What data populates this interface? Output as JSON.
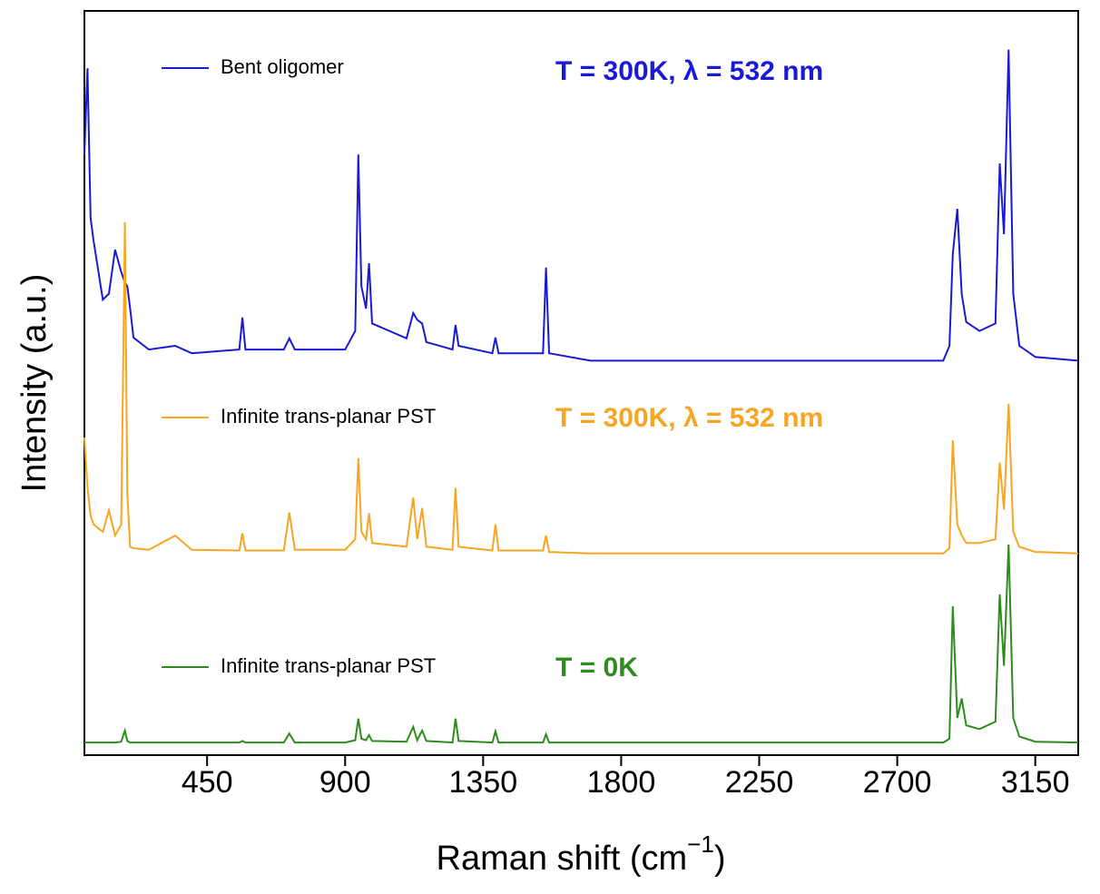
{
  "chart_data": {
    "type": "line",
    "y_label": "Intensity (a.u.)",
    "x_label": {
      "text": "Raman shift (cm",
      "superscript": "−1",
      "suffix": ")"
    },
    "xlim": [
      50,
      3290
    ],
    "ylim": [
      0,
      100
    ],
    "xticks": [
      450,
      900,
      1350,
      1800,
      2250,
      2700,
      3150
    ],
    "x": [
      50,
      60,
      70,
      80,
      110,
      130,
      150,
      170,
      182,
      190,
      199,
      210,
      260,
      346,
      400,
      555,
      565,
      575,
      700,
      718,
      736,
      900,
      933,
      943,
      953,
      968,
      978,
      988,
      1100,
      1122,
      1135,
      1151,
      1165,
      1250,
      1260,
      1270,
      1380,
      1390,
      1400,
      1545,
      1555,
      1565,
      1700,
      2850,
      2870,
      2881,
      2896,
      2910,
      2925,
      2968,
      3020,
      3034,
      3048,
      3063,
      3078,
      3098,
      3150,
      3290
    ],
    "series": [
      {
        "name": "Bent oligomer",
        "color": "#1a1ad6",
        "annotation": "T = 300K, λ = 532 nm",
        "values": [
          80.7,
          92.3,
          72.2,
          69.1,
          61.2,
          62,
          67.9,
          64.9,
          63.5,
          63,
          60,
          56.1,
          54.5,
          55,
          54,
          54.5,
          58.8,
          54.5,
          54.5,
          56,
          54.5,
          54.5,
          57,
          80.7,
          63,
          60,
          66.1,
          58,
          56,
          59.4,
          58.5,
          58,
          55.5,
          54.5,
          57.8,
          55,
          54,
          56.1,
          54,
          54,
          65.5,
          54,
          53,
          53,
          55,
          67.3,
          73.4,
          62,
          58.2,
          57,
          58,
          79.5,
          70,
          94.8,
          62,
          55,
          53.5,
          53
        ]
      },
      {
        "name": "Infinite trans-planar PST",
        "color": "#f5a623",
        "annotation": "T = 300K, λ = 532 nm",
        "values": [
          42.7,
          36,
          32.2,
          31,
          30,
          32.9,
          29.5,
          31,
          71.6,
          35,
          28,
          27.8,
          27.6,
          29.5,
          27.6,
          27.5,
          29.8,
          27.5,
          27.5,
          32.6,
          27.6,
          27.6,
          29,
          39.9,
          30,
          29,
          32.5,
          28.5,
          28,
          34.6,
          29,
          33.2,
          28,
          27.6,
          35.9,
          28,
          27.5,
          31,
          27.5,
          27.5,
          29.5,
          27.3,
          27.1,
          27.1,
          27.8,
          42.3,
          31,
          29.5,
          28.5,
          28.5,
          29,
          39.3,
          33,
          47.2,
          30,
          28,
          27.3,
          27.1
        ]
      },
      {
        "name": "Infinite trans-planar PST",
        "color": "#2e8b1e",
        "annotation": "T = 0K",
        "values": [
          1.7,
          1.7,
          1.7,
          1.7,
          1.7,
          1.7,
          1.7,
          1.8,
          3.3,
          1.9,
          1.7,
          1.7,
          1.7,
          1.7,
          1.7,
          1.7,
          1.9,
          1.7,
          1.7,
          2.9,
          1.7,
          1.7,
          2,
          4.9,
          2.2,
          2,
          2.7,
          1.9,
          1.8,
          3.8,
          2,
          3.3,
          1.9,
          1.7,
          4.9,
          1.9,
          1.7,
          3.2,
          1.7,
          1.7,
          2.8,
          1.7,
          1.7,
          1.7,
          2.2,
          20,
          5,
          7.6,
          4,
          3.5,
          4.5,
          21.6,
          12,
          28.3,
          5,
          2.5,
          1.8,
          1.7
        ]
      }
    ]
  }
}
